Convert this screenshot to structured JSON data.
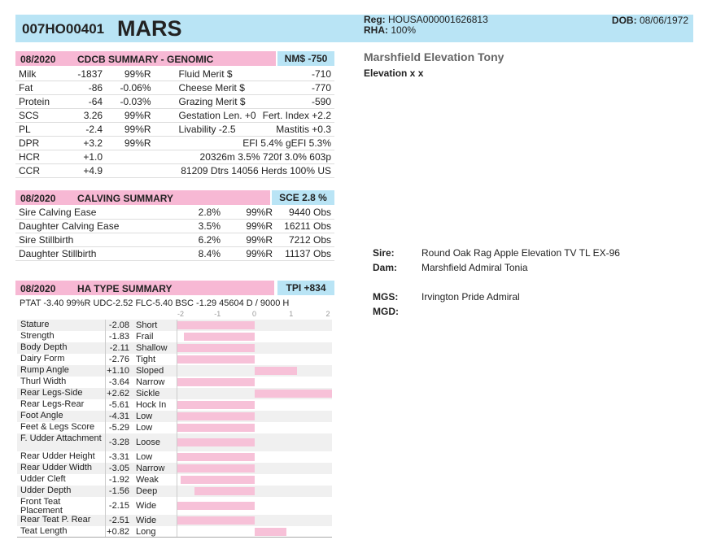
{
  "header": {
    "code": "007HO00401",
    "name": "MARS",
    "reg_label": "Reg:",
    "reg_value": "HOUSA000001626813",
    "rha_label": "RHA:",
    "rha_value": "100%",
    "dob_label": "DOB:",
    "dob_value": "08/06/1972"
  },
  "genomic": {
    "date": "08/2020",
    "title": "CDCB SUMMARY - GENOMIC",
    "badge": "NM$ -750",
    "rows": [
      [
        "Milk",
        "-1837",
        "99%R",
        "Fluid Merit $",
        "-710"
      ],
      [
        "Fat",
        "-86",
        "-0.06%",
        "Cheese Merit $",
        "-770"
      ],
      [
        "Protein",
        "-64",
        "-0.03%",
        "Grazing Merit $",
        "-590"
      ],
      [
        "SCS",
        "3.26",
        "99%R",
        "Gestation Len. +0",
        "Fert. Index +2.2"
      ],
      [
        "PL",
        "-2.4",
        "99%R",
        "Livability  -2.5",
        "Mastitis  +0.3"
      ],
      [
        "DPR",
        "+3.2",
        "99%R",
        "EFI  5.4%  gEFI  5.3%",
        ""
      ],
      [
        "HCR",
        "+1.0",
        "",
        "20326m  3.5%  720f  3.0%  603p",
        ""
      ],
      [
        "CCR",
        "+4.9",
        "",
        "81209 Dtrs  14056 Herds  100% US",
        ""
      ]
    ]
  },
  "calving": {
    "date": "08/2020",
    "title": "CALVING SUMMARY",
    "badge": "SCE 2.8 %",
    "rows": [
      [
        "Sire Calving Ease",
        "2.8%",
        "99%R",
        "9440 Obs"
      ],
      [
        "Daughter Calving Ease",
        "3.5%",
        "99%R",
        "16211 Obs"
      ],
      [
        "Sire Stillbirth",
        "6.2%",
        "99%R",
        "7212 Obs"
      ],
      [
        "Daughter Stillbirth",
        "8.4%",
        "99%R",
        "11137 Obs"
      ]
    ]
  },
  "type": {
    "date": "08/2020",
    "title": "HA TYPE SUMMARY",
    "badge": "TPI +834",
    "ptat_line": "PTAT -3.40  99%R  UDC-2.52  FLC-5.40  BSC -1.29  45604 D /  9000 H",
    "scale": [
      "-2",
      "-1",
      "0",
      "1",
      "2"
    ],
    "traits": [
      {
        "name": "Stature",
        "value": "-2.08",
        "desc": "Short"
      },
      {
        "name": "Strength",
        "value": "-1.83",
        "desc": "Frail"
      },
      {
        "name": "Body Depth",
        "value": "-2.11",
        "desc": "Shallow"
      },
      {
        "name": "Dairy Form",
        "value": "-2.76",
        "desc": "Tight"
      },
      {
        "name": "Rump Angle",
        "value": "+1.10",
        "desc": "Sloped"
      },
      {
        "name": "Thurl Width",
        "value": "-3.64",
        "desc": "Narrow"
      },
      {
        "name": "Rear Legs-Side",
        "value": "+2.62",
        "desc": "Sickle"
      },
      {
        "name": "Rear Legs-Rear",
        "value": "-5.61",
        "desc": "Hock In"
      },
      {
        "name": "Foot Angle",
        "value": "-4.31",
        "desc": "Low"
      },
      {
        "name": "Feet & Legs Score",
        "value": "-5.29",
        "desc": "Low"
      },
      {
        "name": "F. Udder Attachment",
        "value": "-3.28",
        "desc": "Loose"
      },
      {
        "name": "Rear Udder Height",
        "value": "-3.31",
        "desc": "Low"
      },
      {
        "name": "Rear Udder Width",
        "value": "-3.05",
        "desc": "Narrow"
      },
      {
        "name": "Udder Cleft",
        "value": "-1.92",
        "desc": "Weak"
      },
      {
        "name": "Udder Depth",
        "value": "-1.56",
        "desc": "Deep"
      },
      {
        "name": "Front Teat Placement",
        "value": "-2.15",
        "desc": "Wide"
      },
      {
        "name": "Rear Teat P. Rear",
        "value": "-2.51",
        "desc": "Wide"
      },
      {
        "name": "Teat Length",
        "value": "+0.82",
        "desc": "Long"
      }
    ]
  },
  "info": {
    "title": "Marshfield Elevation Tony",
    "subtitle": "Elevation x x"
  },
  "pedigree": {
    "sire_label": "Sire:",
    "sire": "Round Oak Rag Apple Elevation TV TL EX-96",
    "dam_label": "Dam:",
    "dam": "Marshfield Admiral Tonia",
    "mgs_label": "MGS:",
    "mgs": "Irvington Pride Admiral",
    "mgd_label": "MGD:",
    "mgd": ""
  }
}
